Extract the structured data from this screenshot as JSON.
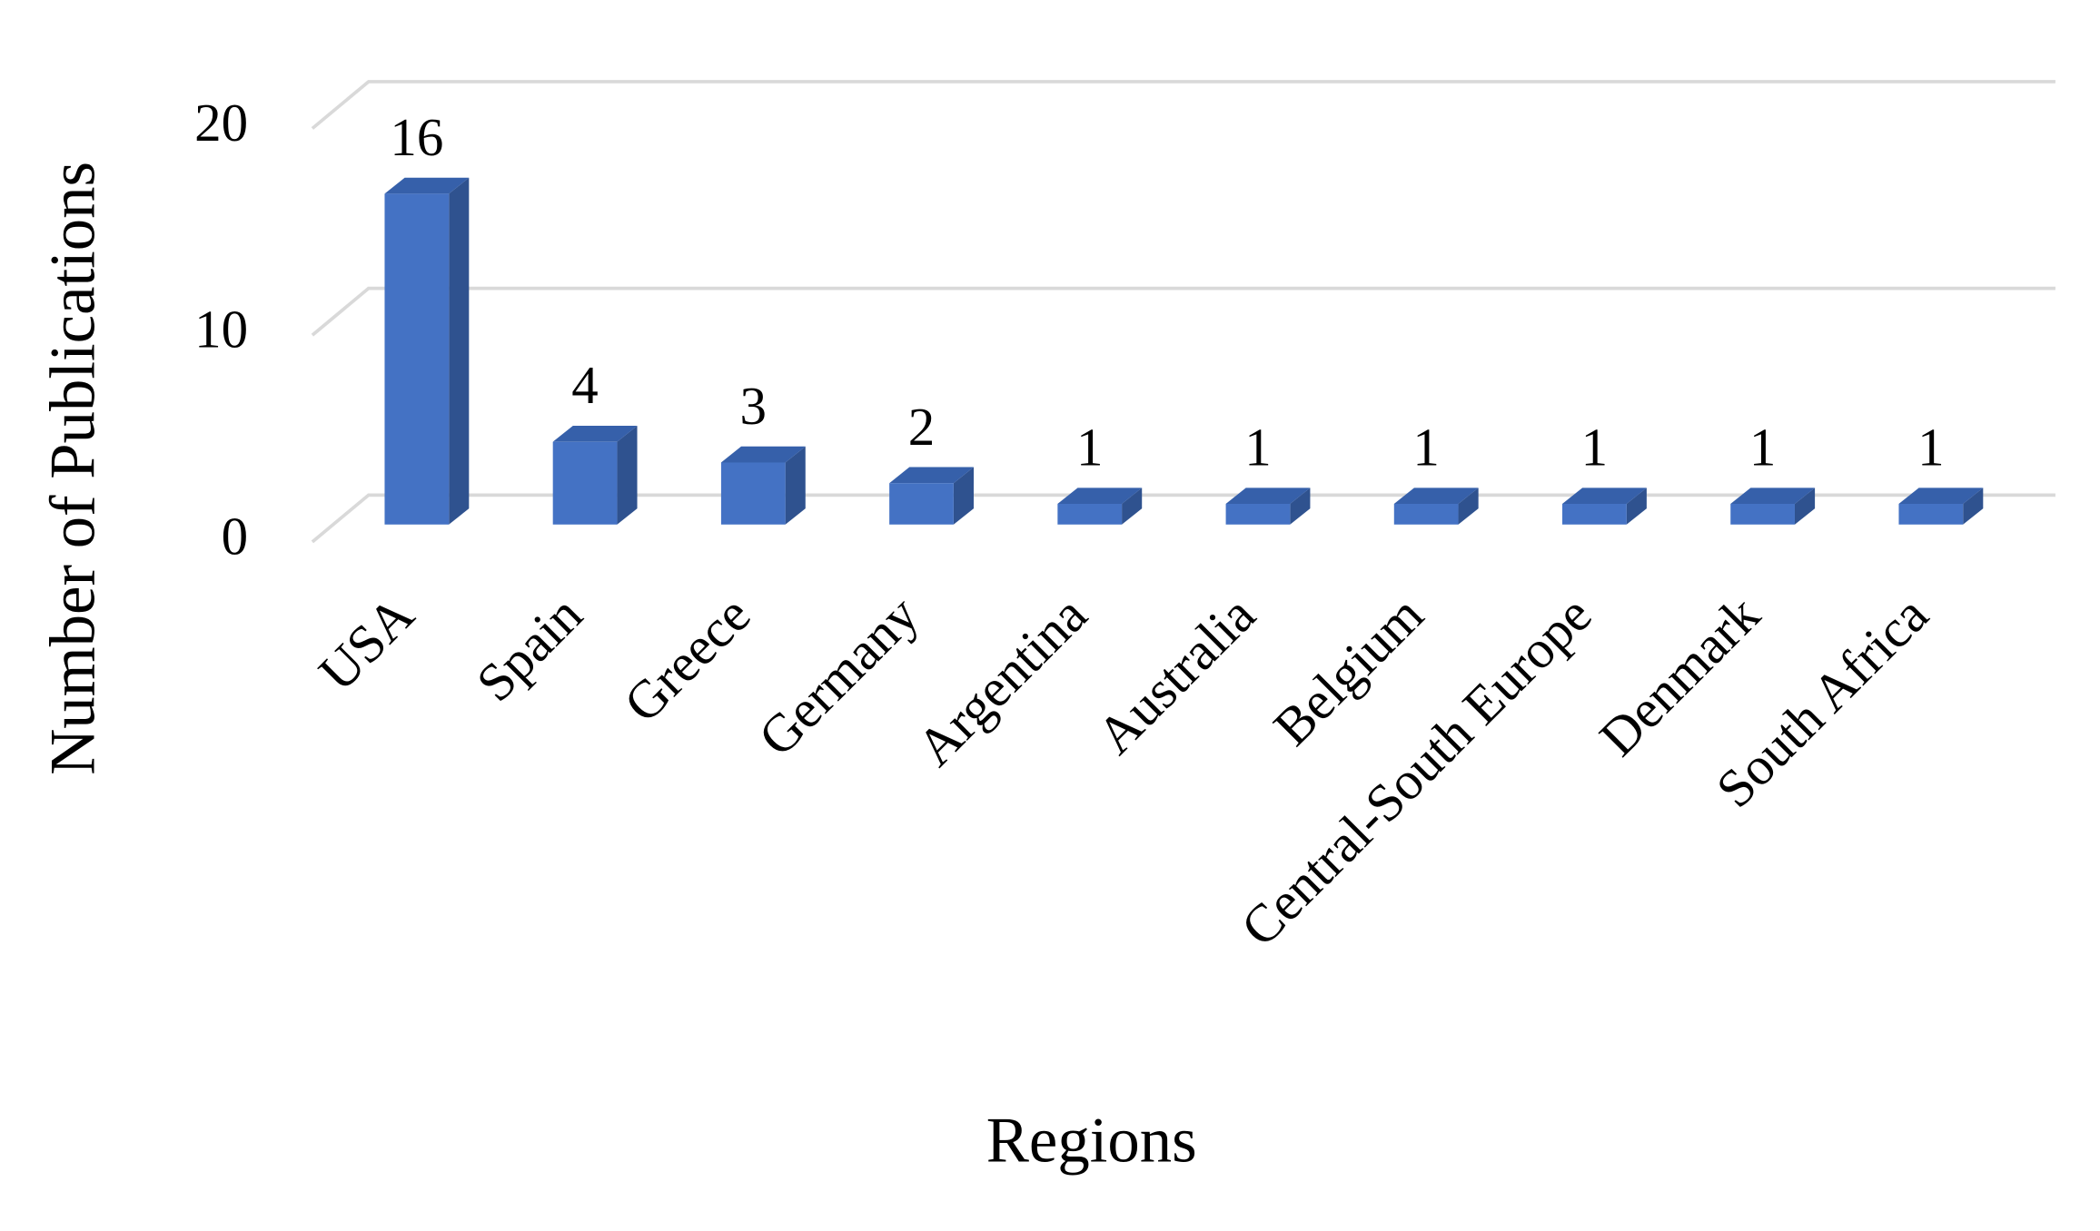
{
  "chart_data": {
    "type": "bar",
    "x_label": "Regions",
    "y_label": "Number of Publications",
    "categories": [
      "USA",
      "Spain",
      "Greece",
      "Germany",
      "Argentina",
      "Australia",
      "Belgium",
      "Central-South Europe",
      "Denmark",
      "South Africa"
    ],
    "values": [
      16,
      4,
      3,
      2,
      1,
      1,
      1,
      1,
      1,
      1
    ],
    "color": "#4472c4",
    "ylim": [
      0,
      20
    ],
    "yticks": [
      0,
      10,
      20
    ],
    "grid": true
  }
}
